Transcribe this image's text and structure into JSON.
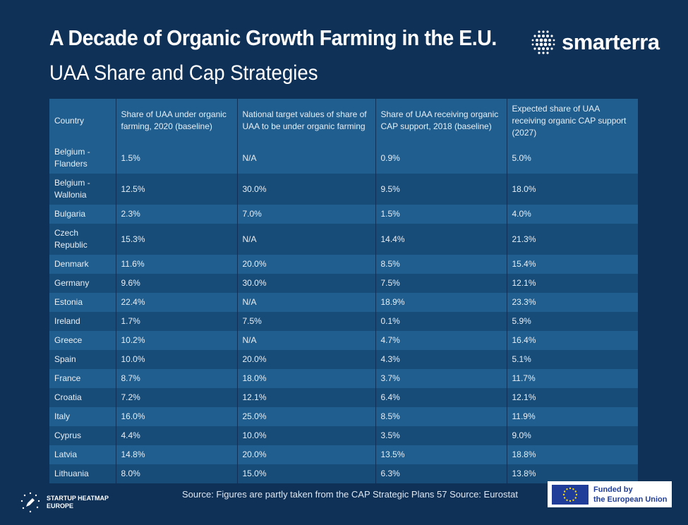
{
  "title": "A Decade of Organic Growth Farming in the E.U.",
  "subtitle": "UAA Share and Cap Strategies",
  "brand": {
    "name": "smarterra",
    "icon": "dot-grid-logo-icon"
  },
  "source": "Source:  Figures are partly taken from the CAP Strategic Plans 57 Source: Eurostat",
  "footer_logo": {
    "line1": "STARTUP HEATMAP",
    "line2": "EUROPE",
    "icon": "rocket-stars-icon"
  },
  "eu_badge": {
    "line1": "Funded by",
    "line2": "the European Union",
    "icon": "eu-flag-icon"
  },
  "colors": {
    "background": "#0f3158",
    "row_light": "#1f5e8e",
    "row_dark": "#184c78",
    "eu_blue": "#1f3d99"
  },
  "chart_data": {
    "type": "table",
    "columns": [
      "Country",
      "Share of UAA under organic farming, 2020 (baseline)",
      "National target values of share of UAA to be under organic farming",
      "Share of UAA receiving organic CAP support, 2018 (baseline)",
      "Expected share of UAA receiving organic CAP support (2027)"
    ],
    "rows": [
      [
        "Belgium - Flanders",
        "1.5%",
        "N/A",
        "0.9%",
        "5.0%"
      ],
      [
        "Belgium - Wallonia",
        "12.5%",
        "30.0%",
        "9.5%",
        "18.0%"
      ],
      [
        "Bulgaria",
        "2.3%",
        "7.0%",
        "1.5%",
        "4.0%"
      ],
      [
        "Czech Republic",
        "15.3%",
        "N/A",
        "14.4%",
        "21.3%"
      ],
      [
        "Denmark",
        "11.6%",
        "20.0%",
        "8.5%",
        "15.4%"
      ],
      [
        "Germany",
        "9.6%",
        "30.0%",
        "7.5%",
        "12.1%"
      ],
      [
        "Estonia",
        "22.4%",
        "N/A",
        "18.9%",
        "23.3%"
      ],
      [
        "Ireland",
        "1.7%",
        "7.5%",
        "0.1%",
        "5.9%"
      ],
      [
        "Greece",
        "10.2%",
        "N/A",
        "4.7%",
        "16.4%"
      ],
      [
        "Spain",
        "10.0%",
        "20.0%",
        "4.3%",
        "5.1%"
      ],
      [
        "France",
        "8.7%",
        "18.0%",
        "3.7%",
        "11.7%"
      ],
      [
        "Croatia",
        "7.2%",
        "12.1%",
        "6.4%",
        "12.1%"
      ],
      [
        "Italy",
        "16.0%",
        "25.0%",
        "8.5%",
        "11.9%"
      ],
      [
        "Cyprus",
        "4.4%",
        "10.0%",
        "3.5%",
        "9.0%"
      ],
      [
        "Latvia",
        "14.8%",
        "20.0%",
        "13.5%",
        "18.8%"
      ],
      [
        "Lithuania",
        "8.0%",
        "15.0%",
        "6.3%",
        "13.8%"
      ]
    ]
  }
}
